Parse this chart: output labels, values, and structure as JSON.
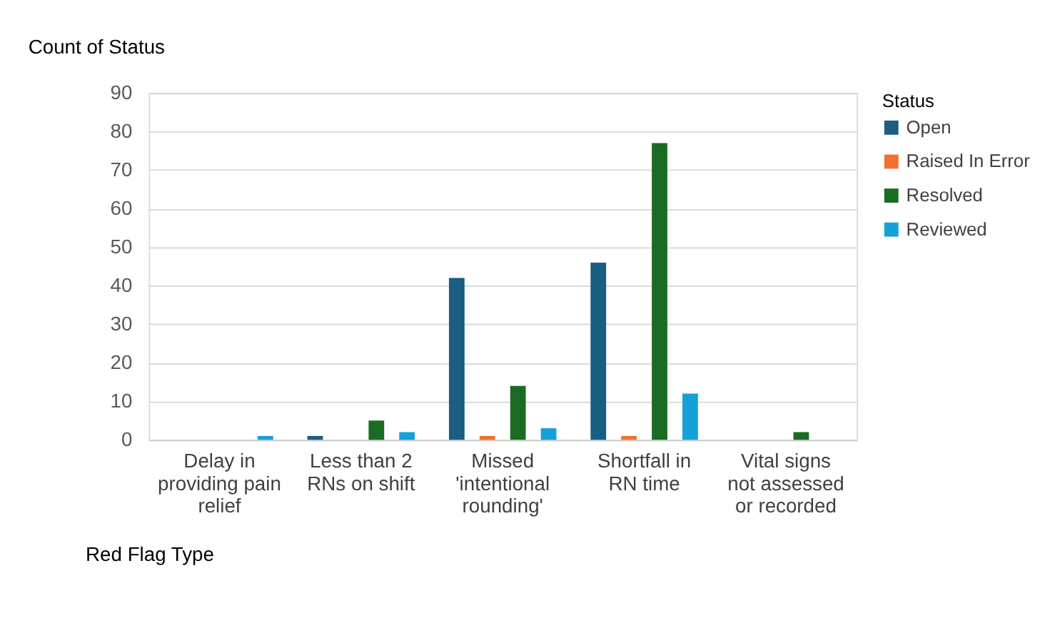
{
  "chart_data": {
    "type": "bar",
    "title": "Count of Status",
    "xlabel": "Red Flag Type",
    "legend_title": "Status",
    "categories": [
      "Delay in providing pain relief",
      "Less than 2 RNs on shift",
      "Missed 'intentional rounding'",
      "Shortfall in RN time",
      "Vital signs not assessed or recorded"
    ],
    "series": [
      {
        "name": "Open",
        "color": "#1a5e82",
        "values": [
          null,
          1,
          42,
          46,
          null
        ]
      },
      {
        "name": "Raised In Error",
        "color": "#f07030",
        "values": [
          null,
          null,
          1,
          1,
          null
        ]
      },
      {
        "name": "Resolved",
        "color": "#1c6b24",
        "values": [
          null,
          5,
          14,
          77,
          2
        ]
      },
      {
        "name": "Reviewed",
        "color": "#16a0d8",
        "values": [
          1,
          2,
          3,
          12,
          null
        ]
      }
    ],
    "ylim": [
      0,
      90
    ],
    "yticks": [
      0,
      10,
      20,
      30,
      40,
      50,
      60,
      70,
      80,
      90
    ],
    "grid": "y",
    "legend": "right"
  }
}
